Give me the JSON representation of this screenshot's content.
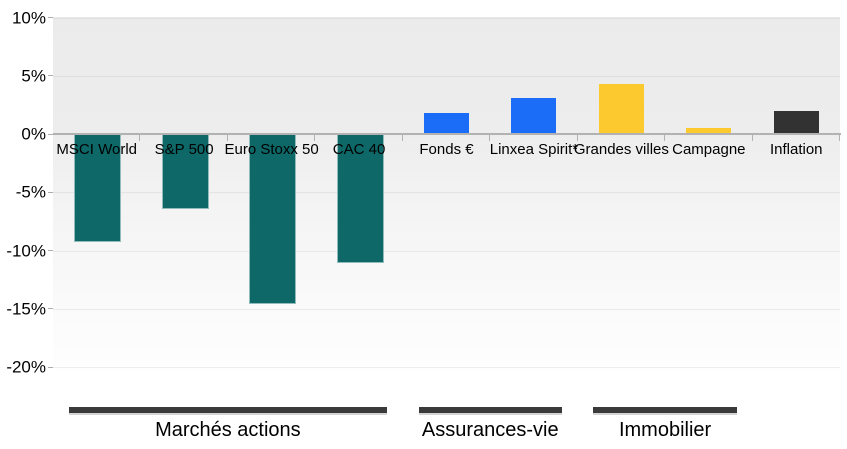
{
  "chart_data": {
    "type": "bar",
    "title": "",
    "xlabel": "",
    "ylabel": "",
    "ylim": [
      -20,
      10
    ],
    "ytick_labels": [
      "10%",
      "5%",
      "0%",
      "-5%",
      "-10%",
      "-15%",
      "-20%"
    ],
    "grid": "faint horizontal at 5% steps",
    "legend_position": "none",
    "categories": [
      "MSCI World",
      "S&P 500",
      "Euro Stoxx 50",
      "CAC 40",
      "Fonds €",
      "Linxea Spirit*",
      "Grandes villes",
      "Campagne",
      "Inflation"
    ],
    "values": [
      -9.3,
      -6.4,
      -14.6,
      -11.1,
      1.7,
      3.0,
      4.2,
      0.4,
      1.9
    ],
    "bar_colors": [
      "#0e6868",
      "#0e6868",
      "#0e6868",
      "#0e6868",
      "#1b6df7",
      "#1b6df7",
      "#fcca2e",
      "#fcca2e",
      "#323232"
    ],
    "groups": [
      {
        "label": "Marchés actions",
        "from": 0,
        "to": 3
      },
      {
        "label": "Assurances-vie",
        "from": 4,
        "to": 5
      },
      {
        "label": "Immobilier",
        "from": 6,
        "to": 7
      }
    ]
  },
  "colors": {
    "equities": "#0e6868",
    "life_insurance": "#1b6df7",
    "real_estate": "#fcca2e",
    "inflation": "#323232",
    "axis": "#b2b2b2",
    "plot_background_top": "#ebebeb",
    "plot_background_bottom": "#fefefe",
    "group_underline": "#3a3a3a"
  }
}
